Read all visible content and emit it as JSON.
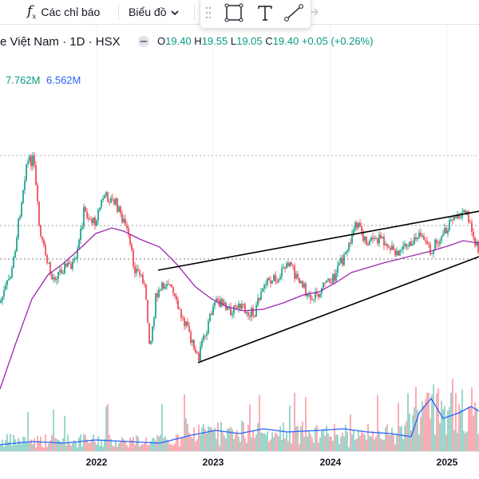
{
  "toolbar": {
    "indicators_label": "Các chỉ báo",
    "chart_type_label": "Biểu đồ",
    "fx_icon": "fx-icon",
    "drawing_tools": [
      "rectangle-tool-icon",
      "text-tool-icon",
      "trendline-tool-icon",
      "arrow-icon"
    ]
  },
  "legend": {
    "symbol_fragment": "e Việt Nam · 1D · HSX",
    "open_label": "O",
    "open": "19.40",
    "high_label": "H",
    "high": "19.55",
    "low_label": "L",
    "low": "19.05",
    "close_label": "C",
    "close": "19.40",
    "change": "+0.05 (+0.26%)"
  },
  "volume_legend": {
    "volume": "7.762M",
    "volume_ma": "6.562M"
  },
  "chart_data": {
    "type": "candlestick",
    "x_ticks": [
      "2022",
      "2023",
      "2024",
      "2025"
    ],
    "last_ohlc": {
      "open": 19.4,
      "high": 19.55,
      "low": 19.05,
      "close": 19.4
    },
    "volume": 7.762,
    "volume_ma": 6.562,
    "volume_unit": "M",
    "colors": {
      "up": "#089981",
      "down": "#f23645",
      "ma": "#9c27b0",
      "volume_ma": "#2962ff",
      "trendline": "#000000"
    }
  }
}
